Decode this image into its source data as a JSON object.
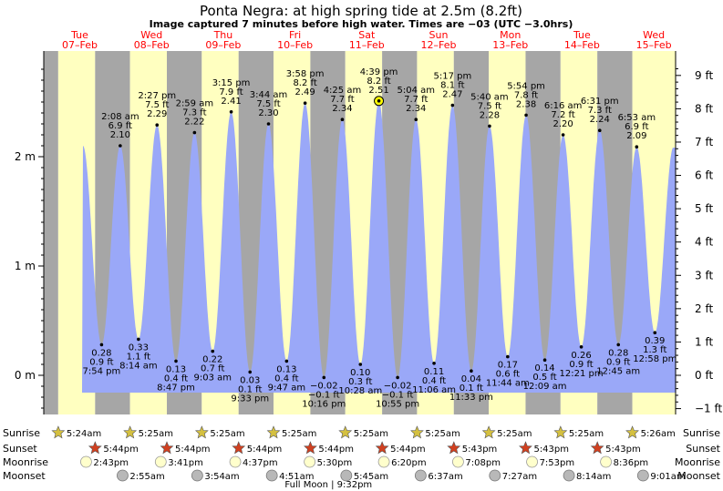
{
  "header": {
    "title": "Ponta Negra: at high  spring tide at 2.5m (8.2ft)",
    "subtitle": "Image captured 7 minutes before high water. Times are −03 (UTC −3.0hrs)"
  },
  "colors": {
    "day": "#ffffc0",
    "night": "#a6a6a6",
    "tide_fill": "#9aa8f8",
    "day_label": "#ff0000",
    "sun_star": "#d4c040",
    "sunset_star": "#d04020",
    "moon_disc": "#ffffcc",
    "moonset_disc": "#b8b8b8",
    "current_marker": "#ffff00"
  },
  "days": [
    {
      "dow": "Tue",
      "date": "07–Feb"
    },
    {
      "dow": "Wed",
      "date": "08–Feb"
    },
    {
      "dow": "Thu",
      "date": "09–Feb"
    },
    {
      "dow": "Fri",
      "date": "10–Feb"
    },
    {
      "dow": "Sat",
      "date": "11–Feb"
    },
    {
      "dow": "Sun",
      "date": "12–Feb"
    },
    {
      "dow": "Mon",
      "date": "13–Feb"
    },
    {
      "dow": "Tue",
      "date": "14–Feb"
    },
    {
      "dow": "Wed",
      "date": "15–Feb"
    }
  ],
  "chart_data": {
    "type": "area",
    "title": "Ponta Negra: at high  spring tide at 2.5m (8.2ft)",
    "x_unit": "days since 07-Feb 00:00 (local −03)",
    "y_unit": "m",
    "ylim_m": [
      -0.45,
      2.85
    ],
    "left_axis_ticks": [
      {
        "value": 0,
        "label": "0 m"
      },
      {
        "value": 1,
        "label": "1 m"
      },
      {
        "value": 2,
        "label": "2 m"
      }
    ],
    "right_axis_ticks": [
      {
        "value": -1,
        "label": "−1 ft"
      },
      {
        "value": 0,
        "label": "0 ft"
      },
      {
        "value": 1,
        "label": "1 ft"
      },
      {
        "value": 2,
        "label": "2 ft"
      },
      {
        "value": 3,
        "label": "3 ft"
      },
      {
        "value": 4,
        "label": "4 ft"
      },
      {
        "value": 5,
        "label": "5 ft"
      },
      {
        "value": 6,
        "label": "6 ft"
      },
      {
        "value": 7,
        "label": "7 ft"
      },
      {
        "value": 8,
        "label": "8 ft"
      },
      {
        "value": 9,
        "label": "9 ft"
      }
    ],
    "tides": [
      {
        "type": "low",
        "time": "7:54 pm",
        "m": 0.28,
        "ft": "0.9 ft",
        "m_label": "0.28 m"
      },
      {
        "type": "high",
        "time": "2:08 am",
        "m": 2.1,
        "ft": "6.9 ft",
        "m_label": "2.10 m"
      },
      {
        "type": "low",
        "time": "8:14 am",
        "m": 0.33,
        "ft": "1.1 ft",
        "m_label": "0.33 m"
      },
      {
        "type": "high",
        "time": "2:27 pm",
        "m": 2.29,
        "ft": "7.5 ft",
        "m_label": "2.29 m"
      },
      {
        "type": "low",
        "time": "8:47 pm",
        "m": 0.13,
        "ft": "0.4 ft",
        "m_label": "0.13 m"
      },
      {
        "type": "high",
        "time": "2:59 am",
        "m": 2.22,
        "ft": "7.3 ft",
        "m_label": "2.22 m"
      },
      {
        "type": "low",
        "time": "9:03 am",
        "m": 0.22,
        "ft": "0.7 ft",
        "m_label": "0.22 m"
      },
      {
        "type": "high",
        "time": "3:15 pm",
        "m": 2.41,
        "ft": "7.9 ft",
        "m_label": "2.41 m"
      },
      {
        "type": "low",
        "time": "9:33 pm",
        "m": 0.03,
        "ft": "0.1 ft",
        "m_label": "0.03 m"
      },
      {
        "type": "high",
        "time": "3:44 am",
        "m": 2.3,
        "ft": "7.5 ft",
        "m_label": "2.30 m"
      },
      {
        "type": "low",
        "time": "9:47 am",
        "m": 0.13,
        "ft": "0.4 ft",
        "m_label": "0.13 m"
      },
      {
        "type": "high",
        "time": "3:58 pm",
        "m": 2.49,
        "ft": "8.2 ft",
        "m_label": "2.49 m"
      },
      {
        "type": "low",
        "time": "10:16 pm",
        "m": -0.02,
        "ft": "−0.1 ft",
        "m_label": "−0.02 m"
      },
      {
        "type": "high",
        "time": "4:25 am",
        "m": 2.34,
        "ft": "7.7 ft",
        "m_label": "2.34 m"
      },
      {
        "type": "low",
        "time": "10:28 am",
        "m": 0.1,
        "ft": "0.3 ft",
        "m_label": "0.10 m"
      },
      {
        "type": "high",
        "time": "4:39 pm",
        "m": 2.51,
        "ft": "8.2 ft",
        "m_label": "2.51 m"
      },
      {
        "type": "low",
        "time": "10:55 pm",
        "m": -0.02,
        "ft": "−0.1 ft",
        "m_label": "−0.02 m"
      },
      {
        "type": "high",
        "time": "5:04 am",
        "m": 2.34,
        "ft": "7.7 ft",
        "m_label": "2.34 m"
      },
      {
        "type": "low",
        "time": "11:06 am",
        "m": 0.11,
        "ft": "0.4 ft",
        "m_label": "0.11 m"
      },
      {
        "type": "high",
        "time": "5:17 pm",
        "m": 2.47,
        "ft": "8.1 ft",
        "m_label": "2.47 m"
      },
      {
        "type": "low",
        "time": "11:33 pm",
        "m": 0.04,
        "ft": "0.1 ft",
        "m_label": "0.04 m"
      },
      {
        "type": "high",
        "time": "5:40 am",
        "m": 2.28,
        "ft": "7.5 ft",
        "m_label": "2.28 m"
      },
      {
        "type": "low",
        "time": "11:44 am",
        "m": 0.17,
        "ft": "0.6 ft",
        "m_label": "0.17 m"
      },
      {
        "type": "high",
        "time": "5:54 pm",
        "m": 2.38,
        "ft": "7.8 ft",
        "m_label": "2.38 m"
      },
      {
        "type": "low",
        "time": "12:09 am",
        "m": 0.14,
        "ft": "0.5 ft",
        "m_label": "0.14 m"
      },
      {
        "type": "high",
        "time": "6:16 am",
        "m": 2.2,
        "ft": "7.2 ft",
        "m_label": "2.20 m"
      },
      {
        "type": "low",
        "time": "12:21 pm",
        "m": 0.26,
        "ft": "0.9 ft",
        "m_label": "0.26 m"
      },
      {
        "type": "high",
        "time": "6:31 pm",
        "m": 2.24,
        "ft": "7.3 ft",
        "m_label": "2.24 m"
      },
      {
        "type": "low",
        "time": "12:45 am",
        "m": 0.28,
        "ft": "0.9 ft",
        "m_label": "0.28 m"
      },
      {
        "type": "high",
        "time": "6:53 am",
        "m": 2.09,
        "ft": "6.9 ft",
        "m_label": "2.09 m"
      },
      {
        "type": "low",
        "time": "12:58 pm",
        "m": 0.39,
        "ft": "1.3 ft",
        "m_label": "0.39 m"
      }
    ],
    "current_marker_tide_index": 15
  },
  "astro": {
    "row_labels": {
      "sunrise": "Sunrise",
      "sunset": "Sunset",
      "moonrise": "Moonrise",
      "moonset": "Moonset"
    },
    "sunrise": [
      {
        "time": "5:24am"
      },
      {
        "time": "5:25am"
      },
      {
        "time": "5:25am"
      },
      {
        "time": "5:25am"
      },
      {
        "time": "5:25am"
      },
      {
        "time": "5:25am"
      },
      {
        "time": "5:25am"
      },
      {
        "time": "5:25am"
      },
      {
        "time": "5:26am"
      }
    ],
    "sunset": [
      {
        "time": "5:44pm"
      },
      {
        "time": "5:44pm"
      },
      {
        "time": "5:44pm"
      },
      {
        "time": "5:44pm"
      },
      {
        "time": "5:44pm"
      },
      {
        "time": "5:43pm"
      },
      {
        "time": "5:43pm"
      },
      {
        "time": "5:43pm"
      }
    ],
    "moonrise": [
      {
        "time": "2:43pm"
      },
      {
        "time": "3:41pm"
      },
      {
        "time": "4:37pm"
      },
      {
        "time": "5:30pm"
      },
      {
        "time": "6:20pm"
      },
      {
        "time": "7:08pm"
      },
      {
        "time": "7:53pm"
      },
      {
        "time": "8:36pm"
      }
    ],
    "moonset": [
      {
        "time": "2:55am"
      },
      {
        "time": "3:54am"
      },
      {
        "time": "4:51am"
      },
      {
        "time": "5:45am"
      },
      {
        "time": "6:37am"
      },
      {
        "time": "7:27am"
      },
      {
        "time": "8:14am"
      },
      {
        "time": "9:01am"
      }
    ],
    "full_moon": "Full Moon | 9:32pm"
  }
}
